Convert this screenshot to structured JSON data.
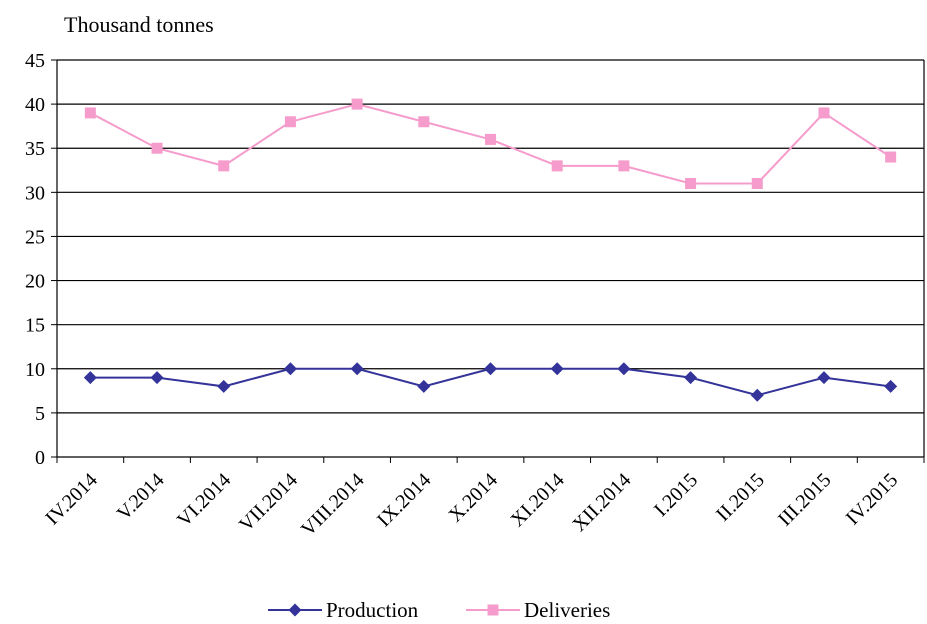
{
  "chart_data": {
    "type": "line",
    "title": "",
    "unit_label": "Thousand tonnes",
    "xlabel": "",
    "ylabel": "",
    "categories": [
      "IV.2014",
      "V.2014",
      "VI.2014",
      "VII.2014",
      "VIII.2014",
      "IX.2014",
      "X.2014",
      "XI.2014",
      "XII.2014",
      "I.2015",
      "II.2015",
      "III.2015",
      "IV.2015"
    ],
    "ylim": [
      0,
      45
    ],
    "yticks": [
      0,
      5,
      10,
      15,
      20,
      25,
      30,
      35,
      40,
      45
    ],
    "grid": true,
    "legend_position": "bottom",
    "series": [
      {
        "name": "Production",
        "color": "#33339a",
        "marker": "diamond",
        "values": [
          9,
          9,
          8,
          10,
          10,
          8,
          10,
          10,
          10,
          9,
          7,
          9,
          8
        ]
      },
      {
        "name": "Deliveries",
        "color": "#f59ccc",
        "marker": "square",
        "values": [
          39,
          35,
          33,
          38,
          40,
          38,
          36,
          33,
          33,
          31,
          31,
          39,
          34
        ]
      }
    ]
  }
}
